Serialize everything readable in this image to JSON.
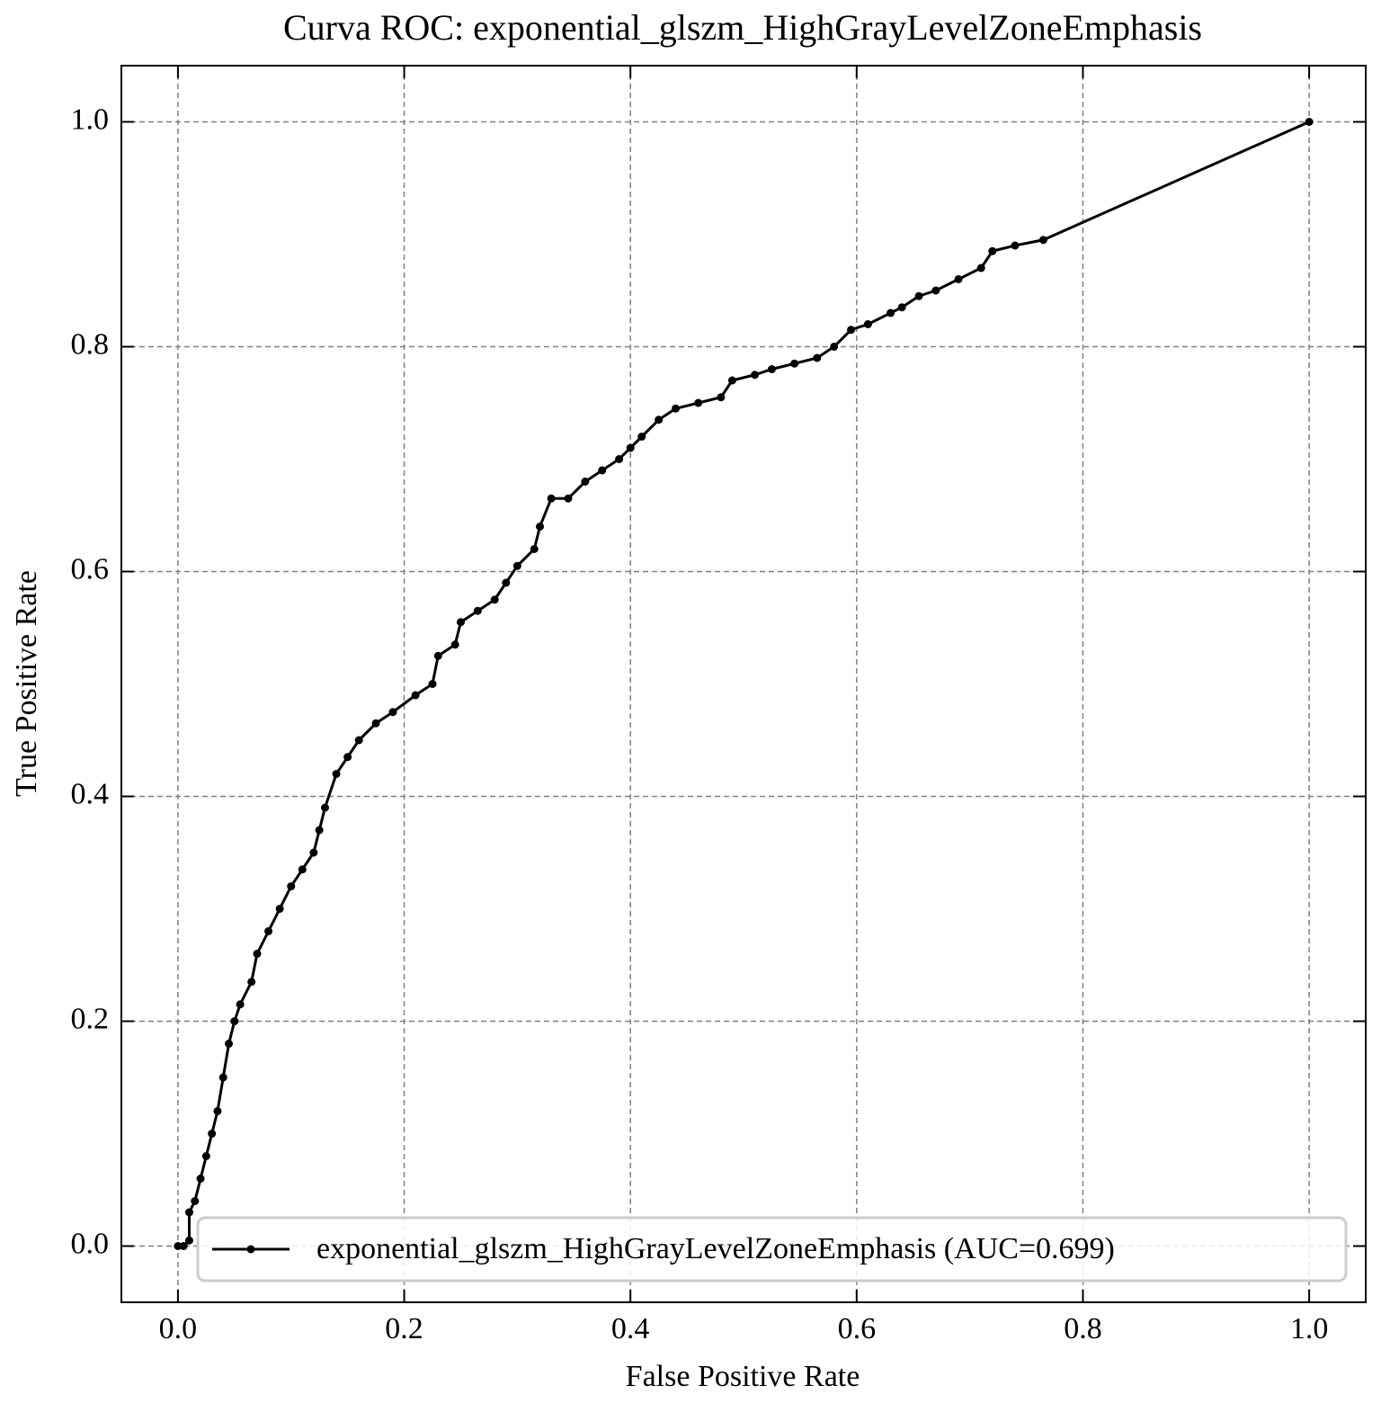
{
  "chart_data": {
    "type": "line",
    "title": "Curva ROC: exponential_glszm_HighGrayLevelZoneEmphasis",
    "x_label": "False Positive Rate",
    "y_label": "True Positive Rate",
    "xlim": [
      -0.05,
      1.05
    ],
    "ylim": [
      -0.05,
      1.05
    ],
    "xticks": [
      {
        "value": 0,
        "label": "0.0"
      },
      0.2,
      0.4,
      0.6,
      0.8,
      {
        "value": 1,
        "label": "1.0"
      }
    ],
    "yticks": [
      {
        "value": 0,
        "label": "0.0"
      },
      0.2,
      0.4,
      0.6,
      0.8,
      {
        "value": 1,
        "label": "1.0"
      }
    ],
    "grid": true,
    "legend": "lower right",
    "x": [
      0,
      0.005,
      0.01,
      0.01,
      0.015,
      0.02,
      0.025,
      0.03,
      0.035,
      0.04,
      0.045,
      0.05,
      0.055,
      0.065,
      0.07,
      0.08,
      0.09,
      0.1,
      0.11,
      0.12,
      0.125,
      0.13,
      0.14,
      0.15,
      0.16,
      0.175,
      0.19,
      0.21,
      0.225,
      0.23,
      0.245,
      0.25,
      0.265,
      0.28,
      0.29,
      0.3,
      0.315,
      0.32,
      0.33,
      0.345,
      0.36,
      0.375,
      0.39,
      0.4,
      0.41,
      0.425,
      0.44,
      0.46,
      0.48,
      0.49,
      0.51,
      0.525,
      0.545,
      0.565,
      0.58,
      0.595,
      0.61,
      0.63,
      0.64,
      0.655,
      0.67,
      0.69,
      0.71,
      0.72,
      0.74,
      0.765,
      1.0
    ],
    "series": [
      {
        "name": "exponential_glszm_HighGrayLevelZoneEmphasis (AUC=0.699)",
        "color": "#000000",
        "values": [
          0,
          0.0,
          0.005,
          0.03,
          0.04,
          0.06,
          0.08,
          0.1,
          0.12,
          0.15,
          0.18,
          0.2,
          0.215,
          0.235,
          0.26,
          0.28,
          0.3,
          0.32,
          0.335,
          0.35,
          0.37,
          0.39,
          0.42,
          0.435,
          0.45,
          0.465,
          0.475,
          0.49,
          0.5,
          0.525,
          0.535,
          0.555,
          0.565,
          0.575,
          0.59,
          0.605,
          0.62,
          0.64,
          0.665,
          0.665,
          0.68,
          0.69,
          0.7,
          0.71,
          0.72,
          0.735,
          0.745,
          0.75,
          0.755,
          0.77,
          0.775,
          0.78,
          0.785,
          0.79,
          0.8,
          0.815,
          0.82,
          0.83,
          0.835,
          0.845,
          0.85,
          0.86,
          0.87,
          0.885,
          0.89,
          0.895,
          1.0
        ]
      }
    ]
  }
}
